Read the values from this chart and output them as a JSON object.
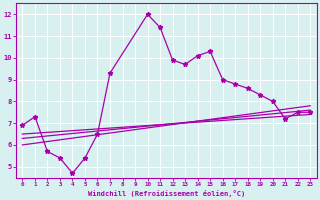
{
  "title": "",
  "xlabel": "Windchill (Refroidissement éolien,°C)",
  "ylabel": "",
  "bg_color": "#d8f0f0",
  "line_color": "#aa00aa",
  "marker": "*",
  "grid_color": "#ffffff",
  "xlim": [
    -0.5,
    23.5
  ],
  "ylim": [
    4.5,
    12.5
  ],
  "xticks": [
    0,
    1,
    2,
    3,
    4,
    5,
    6,
    7,
    8,
    9,
    10,
    11,
    12,
    13,
    14,
    15,
    16,
    17,
    18,
    19,
    20,
    21,
    22,
    23
  ],
  "yticks": [
    5,
    6,
    7,
    8,
    9,
    10,
    11,
    12
  ],
  "line1_x": [
    0,
    1,
    2,
    3,
    4,
    5,
    6,
    7,
    10,
    11,
    12,
    13,
    14,
    15,
    16,
    17,
    18,
    19,
    20,
    21,
    22,
    23
  ],
  "line1_y": [
    6.9,
    7.3,
    5.7,
    5.4,
    4.7,
    5.4,
    6.5,
    9.3,
    12.0,
    11.4,
    9.9,
    9.7,
    10.1,
    10.3,
    9.0,
    8.8,
    8.6,
    8.3,
    8.0,
    7.2,
    7.5,
    7.5
  ],
  "line2_x": [
    0,
    23
  ],
  "line2_y": [
    6.5,
    7.4
  ],
  "line3_x": [
    0,
    23
  ],
  "line3_y": [
    6.3,
    7.6
  ],
  "line4_x": [
    0,
    23
  ],
  "line4_y": [
    6.0,
    7.8
  ]
}
